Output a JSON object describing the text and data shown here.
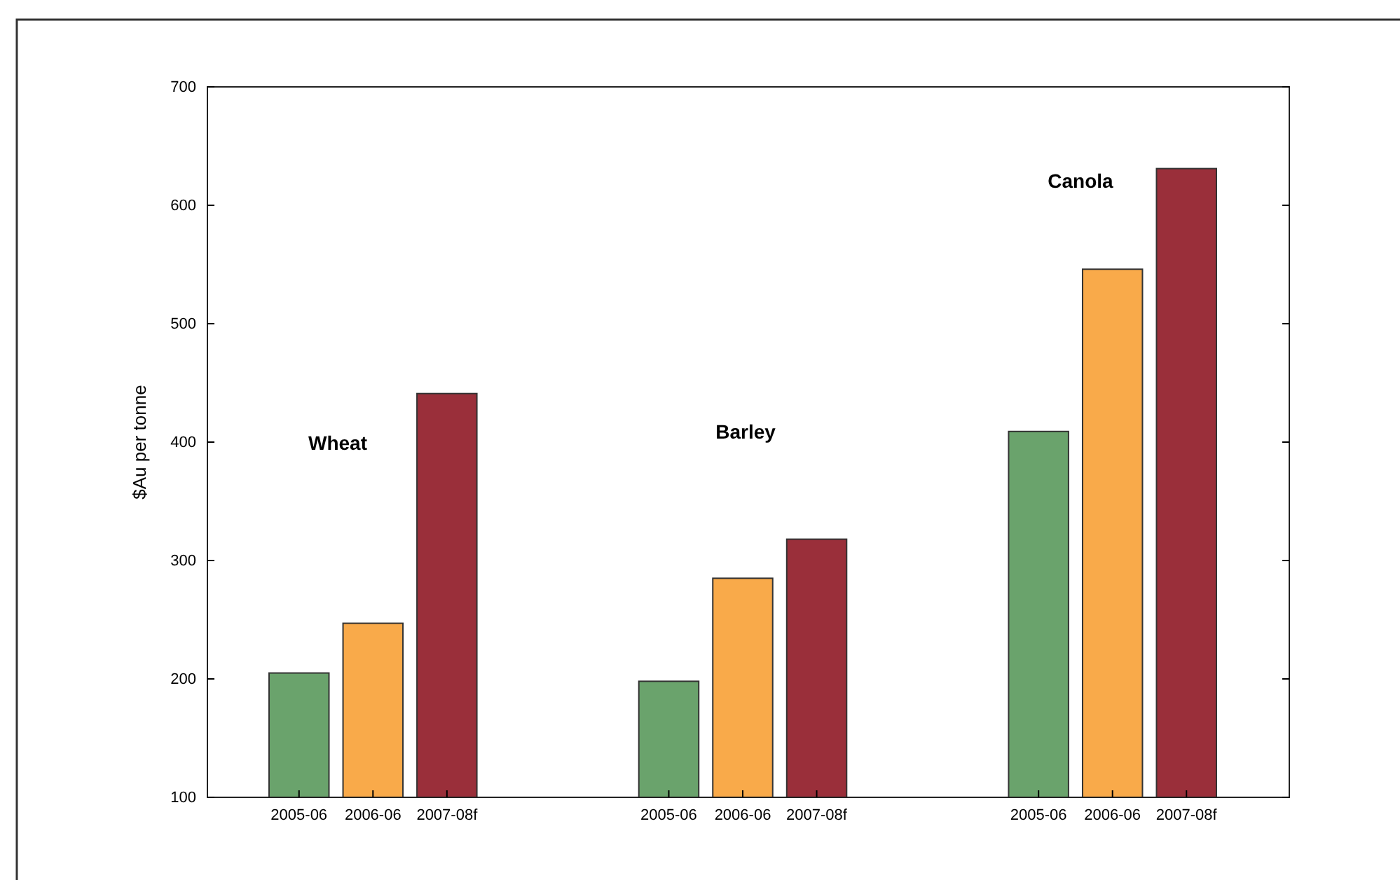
{
  "chart_data": {
    "type": "bar",
    "ylabel": "$Au per tonne",
    "categories": [
      "2005-06",
      "2006-06",
      "2007-08f",
      null,
      null,
      "2005-06",
      "2006-06",
      "2007-08f",
      null,
      null,
      "2005-06",
      "2006-06",
      "2007-08f"
    ],
    "values": [
      205,
      247,
      441,
      null,
      null,
      198,
      285,
      318,
      null,
      null,
      409,
      546,
      631
    ],
    "colors": [
      "#6aa36c",
      "#f9aa4a",
      "#9a2f3a",
      null,
      null,
      "#6aa36c",
      "#f9aa4a",
      "#9a2f3a",
      null,
      null,
      "#6aa36c",
      "#f9aa4a",
      "#9a2f3a"
    ],
    "ylim": [
      100,
      700
    ],
    "yticks": [
      100,
      200,
      300,
      400,
      500,
      600,
      700
    ],
    "annotations": [
      "Wheat",
      "Barley",
      "Canola"
    ]
  }
}
